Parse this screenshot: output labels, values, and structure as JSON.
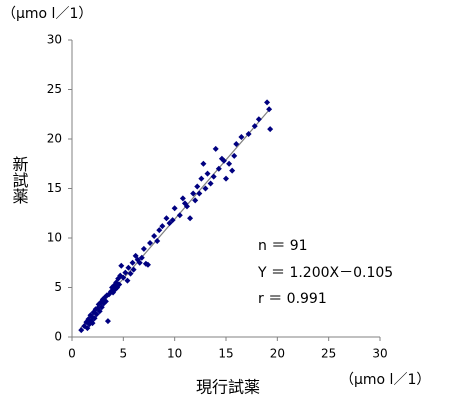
{
  "chart_data": {
    "type": "scatter",
    "y_unit": "（μmo l／1）",
    "x_unit": "（μmo l／1）",
    "ylabel": "新試薬",
    "xlabel": "現行試薬",
    "annotations": [
      "n ＝ 91",
      "Y ＝ 1.200X－0.105",
      "r ＝ 0.991"
    ],
    "xlim": [
      0,
      30
    ],
    "ylim": [
      0,
      30
    ],
    "xticks": [
      0,
      5,
      10,
      15,
      20,
      25,
      30
    ],
    "yticks": [
      0,
      5,
      10,
      15,
      20,
      25,
      30
    ],
    "grid": false,
    "color": "#000080",
    "trendline": {
      "slope": 1.2,
      "intercept": -0.105,
      "xrange": [
        0.8,
        19.3
      ],
      "color": "#808080"
    },
    "x": [
      0.9,
      1.2,
      1.4,
      1.5,
      1.6,
      1.7,
      1.8,
      1.9,
      2.0,
      2.1,
      2.2,
      2.3,
      2.4,
      2.5,
      2.6,
      2.7,
      2.8,
      2.9,
      3.0,
      3.1,
      3.2,
      3.3,
      3.4,
      3.5,
      3.6,
      3.8,
      3.9,
      4.0,
      4.1,
      4.2,
      4.3,
      4.4,
      4.5,
      4.6,
      4.7,
      4.8,
      5.0,
      5.2,
      5.4,
      5.5,
      5.7,
      5.9,
      6.0,
      6.2,
      6.4,
      6.6,
      7.0,
      7.2,
      7.4,
      7.6,
      8.0,
      8.3,
      8.5,
      8.8,
      9.2,
      9.5,
      10.0,
      10.5,
      10.8,
      11.0,
      11.2,
      11.5,
      11.8,
      12.0,
      12.2,
      12.4,
      12.6,
      12.8,
      13.0,
      13.2,
      13.5,
      13.8,
      14.0,
      14.3,
      14.6,
      15.0,
      15.3,
      15.6,
      15.8,
      16.0,
      17.2,
      17.8,
      18.2,
      19.0,
      19.2,
      19.3,
      16.5,
      14.8,
      9.8,
      6.8,
      2.0
    ],
    "values": [
      0.7,
      1.1,
      1.5,
      0.9,
      1.8,
      1.3,
      2.2,
      1.6,
      2.0,
      2.5,
      1.9,
      2.8,
      2.3,
      2.9,
      3.3,
      2.6,
      3.5,
      3.0,
      3.8,
      3.4,
      4.0,
      3.6,
      4.2,
      1.6,
      4.3,
      4.6,
      5.0,
      4.5,
      5.2,
      4.8,
      5.5,
      5.0,
      5.9,
      5.3,
      6.2,
      7.2,
      6.0,
      6.5,
      5.7,
      7.0,
      6.4,
      7.5,
      6.8,
      8.2,
      7.8,
      7.5,
      8.9,
      7.4,
      7.3,
      9.5,
      10.2,
      9.7,
      10.8,
      11.2,
      12.0,
      11.5,
      13.0,
      12.3,
      14.0,
      13.5,
      13.2,
      12.0,
      14.5,
      13.8,
      15.2,
      14.5,
      16.0,
      17.5,
      15.0,
      16.5,
      15.5,
      16.2,
      19.0,
      17.0,
      18.0,
      16.0,
      17.5,
      16.8,
      18.3,
      19.5,
      20.5,
      21.3,
      22.0,
      23.7,
      23.0,
      21.0,
      20.2,
      17.8,
      11.8,
      8.0,
      1.4
    ]
  }
}
